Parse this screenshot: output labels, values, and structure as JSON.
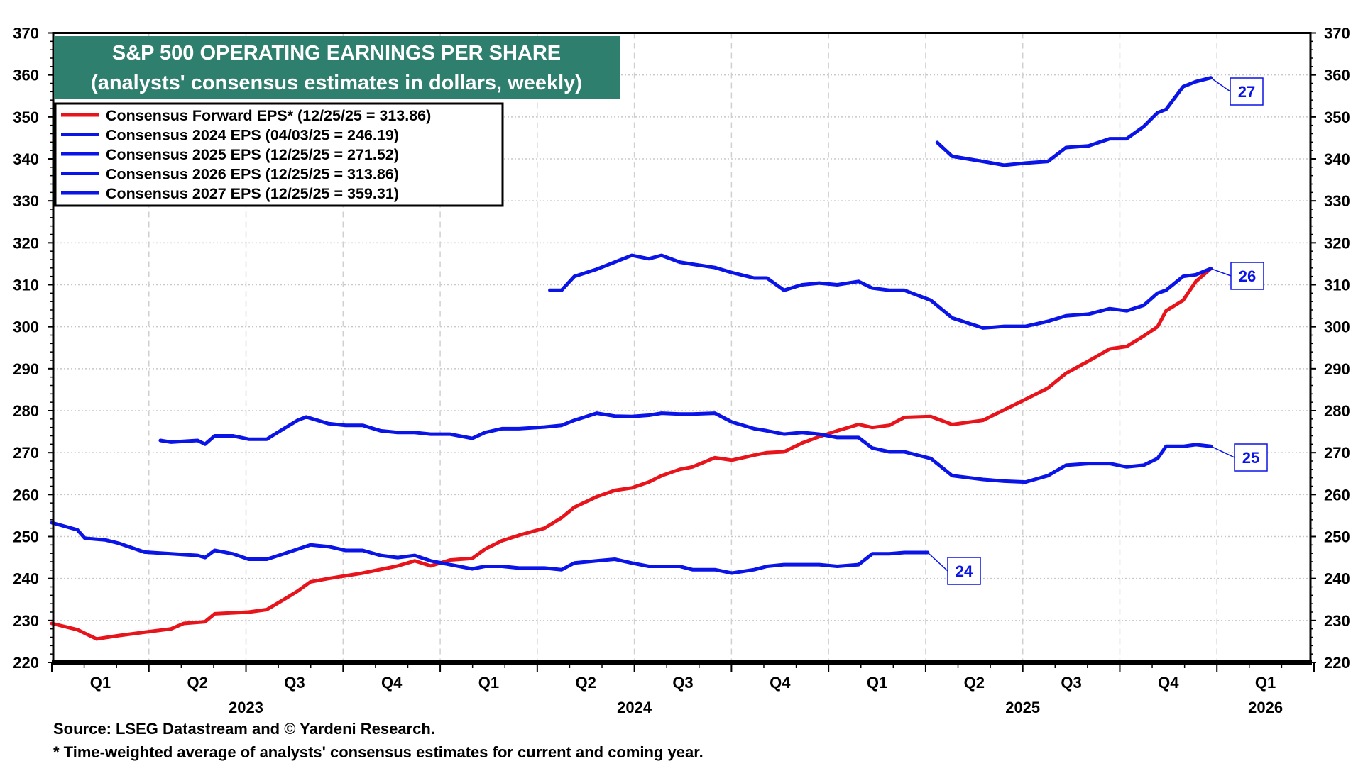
{
  "chart_data": {
    "type": "line",
    "title": "S&P 500 OPERATING EARNINGS PER SHARE",
    "subtitle": "(analysts' consensus estimates in dollars, weekly)",
    "xlabel": "",
    "ylabel": "",
    "ylim": [
      220,
      370
    ],
    "yticks": [
      220,
      230,
      240,
      250,
      260,
      270,
      280,
      290,
      300,
      310,
      320,
      330,
      340,
      350,
      360,
      370
    ],
    "xlim": [
      "2023-01-01",
      "2026-04-01"
    ],
    "quarter_ticks": [
      "Q1",
      "Q2",
      "Q3",
      "Q4",
      "Q1",
      "Q2",
      "Q3",
      "Q4",
      "Q1",
      "Q2",
      "Q3",
      "Q4",
      "Q1"
    ],
    "year_ticks": [
      "2023",
      "2024",
      "2025",
      "2026"
    ],
    "grid": true,
    "legend_position": "top-left",
    "colors": {
      "forward": "#e8141c",
      "annual": "#0a14e6",
      "title_bg": "#2f7f6f"
    },
    "series": [
      {
        "name": "Consensus Forward EPS* (12/25/25 = 313.86)",
        "color": "#e8141c",
        "label": "",
        "points": [
          [
            "2023-01-01",
            229.3
          ],
          [
            "2023-01-25",
            227.8
          ],
          [
            "2023-02-12",
            225.6
          ],
          [
            "2023-03-05",
            226.4
          ],
          [
            "2023-03-29",
            227.2
          ],
          [
            "2023-04-23",
            228
          ],
          [
            "2023-05-05",
            229.3
          ],
          [
            "2023-05-25",
            229.7
          ],
          [
            "2023-06-03",
            231.6
          ],
          [
            "2023-07-05",
            232
          ],
          [
            "2023-07-22",
            232.6
          ],
          [
            "2023-08-07",
            235
          ],
          [
            "2023-08-20",
            237
          ],
          [
            "2023-09-01",
            239.2
          ],
          [
            "2023-09-18",
            240
          ],
          [
            "2023-10-20",
            241.3
          ],
          [
            "2023-11-22",
            243
          ],
          [
            "2023-12-08",
            244.2
          ],
          [
            "2023-12-23",
            243
          ],
          [
            "2024-01-10",
            244.4
          ],
          [
            "2024-01-31",
            244.8
          ],
          [
            "2024-02-12",
            247
          ],
          [
            "2024-02-28",
            249
          ],
          [
            "2024-03-15",
            250.3
          ],
          [
            "2024-04-08",
            252
          ],
          [
            "2024-04-24",
            254.5
          ],
          [
            "2024-05-06",
            257
          ],
          [
            "2024-05-27",
            259.5
          ],
          [
            "2024-06-13",
            261
          ],
          [
            "2024-06-29",
            261.6
          ],
          [
            "2024-07-15",
            263
          ],
          [
            "2024-07-27",
            264.5
          ],
          [
            "2024-08-13",
            266
          ],
          [
            "2024-08-25",
            266.6
          ],
          [
            "2024-09-15",
            268.8
          ],
          [
            "2024-10-01",
            268.2
          ],
          [
            "2024-10-22",
            269.4
          ],
          [
            "2024-11-03",
            270
          ],
          [
            "2024-11-19",
            270.2
          ],
          [
            "2024-12-06",
            272.3
          ],
          [
            "2024-12-22",
            273.8
          ],
          [
            "2025-01-08",
            275.2
          ],
          [
            "2025-01-28",
            276.7
          ],
          [
            "2025-02-10",
            276
          ],
          [
            "2025-02-26",
            276.5
          ],
          [
            "2025-03-12",
            278.4
          ],
          [
            "2025-04-06",
            278.6
          ],
          [
            "2025-04-26",
            276.7
          ],
          [
            "2025-05-25",
            277.7
          ],
          [
            "2025-06-14",
            280.2
          ],
          [
            "2025-07-04",
            282.7
          ],
          [
            "2025-07-25",
            285.4
          ],
          [
            "2025-08-11",
            288.9
          ],
          [
            "2025-09-01",
            291.8
          ],
          [
            "2025-09-21",
            294.7
          ],
          [
            "2025-10-07",
            295.3
          ],
          [
            "2025-10-23",
            297.8
          ],
          [
            "2025-11-05",
            300
          ],
          [
            "2025-11-13",
            303.8
          ],
          [
            "2025-11-29",
            306.3
          ],
          [
            "2025-12-11",
            310.8
          ],
          [
            "2025-12-25",
            313.86
          ]
        ]
      },
      {
        "name": "Consensus 2024 EPS (04/03/25 = 246.19)",
        "color": "#0a14e6",
        "label": "24",
        "points": [
          [
            "2023-01-01",
            253.3
          ],
          [
            "2023-01-25",
            251.6
          ],
          [
            "2023-02-01",
            249.6
          ],
          [
            "2023-02-20",
            249.2
          ],
          [
            "2023-03-05",
            248.4
          ],
          [
            "2023-03-29",
            246.3
          ],
          [
            "2023-04-23",
            245.9
          ],
          [
            "2023-05-18",
            245.5
          ],
          [
            "2023-05-25",
            245
          ],
          [
            "2023-06-03",
            246.7
          ],
          [
            "2023-06-20",
            245.9
          ],
          [
            "2023-07-05",
            244.6
          ],
          [
            "2023-07-22",
            244.6
          ],
          [
            "2023-08-07",
            245.9
          ],
          [
            "2023-09-01",
            248
          ],
          [
            "2023-09-18",
            247.6
          ],
          [
            "2023-10-04",
            246.7
          ],
          [
            "2023-10-20",
            246.7
          ],
          [
            "2023-11-06",
            245.5
          ],
          [
            "2023-11-22",
            245
          ],
          [
            "2023-12-08",
            245.5
          ],
          [
            "2023-12-23",
            244.2
          ],
          [
            "2024-01-10",
            243.3
          ],
          [
            "2024-01-31",
            242.3
          ],
          [
            "2024-02-12",
            242.9
          ],
          [
            "2024-02-28",
            242.9
          ],
          [
            "2024-03-15",
            242.5
          ],
          [
            "2024-04-08",
            242.5
          ],
          [
            "2024-04-24",
            242.1
          ],
          [
            "2024-05-06",
            243.7
          ],
          [
            "2024-05-27",
            244.2
          ],
          [
            "2024-06-13",
            244.6
          ],
          [
            "2024-06-29",
            243.7
          ],
          [
            "2024-07-15",
            242.9
          ],
          [
            "2024-08-13",
            242.9
          ],
          [
            "2024-08-25",
            242.1
          ],
          [
            "2024-09-15",
            242.1
          ],
          [
            "2024-10-01",
            241.3
          ],
          [
            "2024-10-22",
            242.1
          ],
          [
            "2024-11-03",
            242.9
          ],
          [
            "2024-11-19",
            243.3
          ],
          [
            "2024-12-06",
            243.3
          ],
          [
            "2024-12-22",
            243.3
          ],
          [
            "2025-01-08",
            242.9
          ],
          [
            "2025-01-28",
            243.3
          ],
          [
            "2025-02-10",
            245.9
          ],
          [
            "2025-02-26",
            245.9
          ],
          [
            "2025-03-12",
            246.2
          ],
          [
            "2025-04-03",
            246.19
          ]
        ]
      },
      {
        "name": "Consensus 2025 EPS (12/25/25 = 271.52)",
        "color": "#0a14e6",
        "label": "25",
        "points": [
          [
            "2023-04-13",
            272.9
          ],
          [
            "2023-04-23",
            272.5
          ],
          [
            "2023-05-18",
            272.9
          ],
          [
            "2023-05-25",
            272
          ],
          [
            "2023-06-03",
            274
          ],
          [
            "2023-06-20",
            274
          ],
          [
            "2023-07-05",
            273.2
          ],
          [
            "2023-07-22",
            273.2
          ],
          [
            "2023-08-07",
            275.7
          ],
          [
            "2023-08-20",
            277.7
          ],
          [
            "2023-08-28",
            278.5
          ],
          [
            "2023-09-18",
            276.9
          ],
          [
            "2023-10-04",
            276.5
          ],
          [
            "2023-10-20",
            276.5
          ],
          [
            "2023-11-06",
            275.2
          ],
          [
            "2023-11-22",
            274.8
          ],
          [
            "2023-12-08",
            274.8
          ],
          [
            "2023-12-23",
            274.4
          ],
          [
            "2024-01-10",
            274.4
          ],
          [
            "2024-01-31",
            273.4
          ],
          [
            "2024-02-12",
            274.8
          ],
          [
            "2024-02-28",
            275.7
          ],
          [
            "2024-03-15",
            275.7
          ],
          [
            "2024-04-08",
            276.1
          ],
          [
            "2024-04-24",
            276.5
          ],
          [
            "2024-05-06",
            277.7
          ],
          [
            "2024-05-27",
            279.4
          ],
          [
            "2024-06-13",
            278.7
          ],
          [
            "2024-06-29",
            278.6
          ],
          [
            "2024-07-15",
            278.9
          ],
          [
            "2024-07-27",
            279.4
          ],
          [
            "2024-08-13",
            279.2
          ],
          [
            "2024-08-25",
            279.2
          ],
          [
            "2024-09-15",
            279.4
          ],
          [
            "2024-10-01",
            277.3
          ],
          [
            "2024-10-22",
            275.7
          ],
          [
            "2024-11-03",
            275.2
          ],
          [
            "2024-11-19",
            274.4
          ],
          [
            "2024-12-06",
            274.8
          ],
          [
            "2024-12-22",
            274.4
          ],
          [
            "2025-01-08",
            273.6
          ],
          [
            "2025-01-28",
            273.6
          ],
          [
            "2025-02-10",
            271.1
          ],
          [
            "2025-02-26",
            270.2
          ],
          [
            "2025-03-12",
            270.2
          ],
          [
            "2025-04-06",
            268.6
          ],
          [
            "2025-04-26",
            264.5
          ],
          [
            "2025-05-25",
            263.6
          ],
          [
            "2025-06-14",
            263.2
          ],
          [
            "2025-07-04",
            263
          ],
          [
            "2025-07-25",
            264.5
          ],
          [
            "2025-08-11",
            267
          ],
          [
            "2025-09-01",
            267.4
          ],
          [
            "2025-09-21",
            267.4
          ],
          [
            "2025-10-07",
            266.6
          ],
          [
            "2025-10-23",
            267
          ],
          [
            "2025-11-05",
            268.6
          ],
          [
            "2025-11-13",
            271.5
          ],
          [
            "2025-11-29",
            271.5
          ],
          [
            "2025-12-11",
            271.9
          ],
          [
            "2025-12-25",
            271.52
          ]
        ]
      },
      {
        "name": "Consensus 2026 EPS (12/25/25 = 313.86)",
        "color": "#0a14e6",
        "label": "26",
        "points": [
          [
            "2024-04-13",
            308.7
          ],
          [
            "2024-04-24",
            308.7
          ],
          [
            "2024-05-06",
            312
          ],
          [
            "2024-05-27",
            313.7
          ],
          [
            "2024-06-13",
            315.4
          ],
          [
            "2024-06-29",
            317
          ],
          [
            "2024-07-15",
            316.2
          ],
          [
            "2024-07-27",
            317
          ],
          [
            "2024-08-13",
            315.4
          ],
          [
            "2024-08-25",
            314.9
          ],
          [
            "2024-09-15",
            314.1
          ],
          [
            "2024-10-01",
            312.9
          ],
          [
            "2024-10-22",
            311.6
          ],
          [
            "2024-11-03",
            311.6
          ],
          [
            "2024-11-19",
            308.7
          ],
          [
            "2024-12-06",
            310
          ],
          [
            "2024-12-22",
            310.4
          ],
          [
            "2025-01-08",
            310
          ],
          [
            "2025-01-28",
            310.8
          ],
          [
            "2025-02-10",
            309.2
          ],
          [
            "2025-02-26",
            308.7
          ],
          [
            "2025-03-12",
            308.7
          ],
          [
            "2025-04-06",
            306.3
          ],
          [
            "2025-04-26",
            302.1
          ],
          [
            "2025-05-25",
            299.7
          ],
          [
            "2025-06-14",
            300.1
          ],
          [
            "2025-07-04",
            300.1
          ],
          [
            "2025-07-25",
            301.3
          ],
          [
            "2025-08-11",
            302.6
          ],
          [
            "2025-09-01",
            303
          ],
          [
            "2025-09-21",
            304.3
          ],
          [
            "2025-10-07",
            303.8
          ],
          [
            "2025-10-23",
            305.1
          ],
          [
            "2025-11-05",
            308
          ],
          [
            "2025-11-13",
            308.7
          ],
          [
            "2025-11-29",
            312
          ],
          [
            "2025-12-11",
            312.4
          ],
          [
            "2025-12-25",
            313.86
          ]
        ]
      },
      {
        "name": "Consensus 2027 EPS (12/25/25 = 359.31)",
        "color": "#0a14e6",
        "label": "27",
        "points": [
          [
            "2025-04-12",
            343.9
          ],
          [
            "2025-04-26",
            340.6
          ],
          [
            "2025-05-25",
            339.4
          ],
          [
            "2025-06-14",
            338.5
          ],
          [
            "2025-07-04",
            339
          ],
          [
            "2025-07-25",
            339.4
          ],
          [
            "2025-08-11",
            342.7
          ],
          [
            "2025-09-01",
            343.1
          ],
          [
            "2025-09-21",
            344.8
          ],
          [
            "2025-10-07",
            344.8
          ],
          [
            "2025-10-23",
            347.7
          ],
          [
            "2025-11-05",
            351
          ],
          [
            "2025-11-13",
            351.8
          ],
          [
            "2025-11-29",
            357.2
          ],
          [
            "2025-12-11",
            358.4
          ],
          [
            "2025-12-25",
            359.31
          ]
        ]
      }
    ],
    "footnotes": {
      "source": "Source: LSEG Datastream and © Yardeni Research.",
      "note": "* Time-weighted average of analysts' consensus estimates for current and coming year."
    }
  }
}
